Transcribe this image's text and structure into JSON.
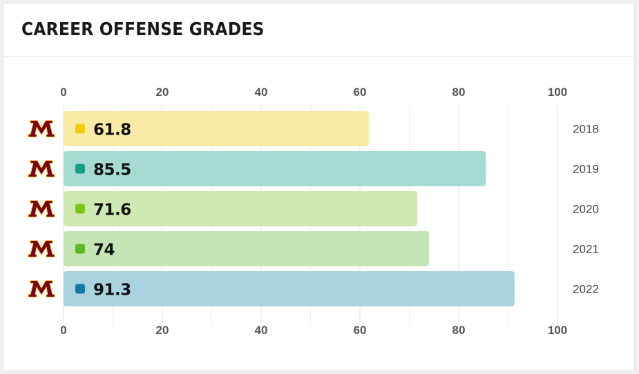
{
  "card": {
    "title": "CAREER OFFENSE GRADES"
  },
  "colors": {
    "team_logo": "#7a0019",
    "team_logo_outline": "#ffcc33"
  },
  "icons": {
    "team_logo": "minnesota-m-logo"
  },
  "chart_data": {
    "type": "bar",
    "orientation": "horizontal",
    "categories": [
      "2018",
      "2019",
      "2020",
      "2021",
      "2022"
    ],
    "values": [
      61.8,
      85.5,
      71.6,
      74,
      91.3
    ],
    "value_labels": [
      "61.8",
      "85.5",
      "71.6",
      "74",
      "91.3"
    ],
    "xlim": [
      0,
      100
    ],
    "x_ticks": [
      0,
      20,
      40,
      60,
      80,
      100
    ],
    "grid": true,
    "bar_colors": [
      "#f9eaa6",
      "#a6dbd2",
      "#cde8b0",
      "#c4e5b4",
      "#a8d3df"
    ],
    "dot_colors": [
      "#f2cc0f",
      "#149c84",
      "#7cc419",
      "#5cb828",
      "#1479a5"
    ]
  }
}
